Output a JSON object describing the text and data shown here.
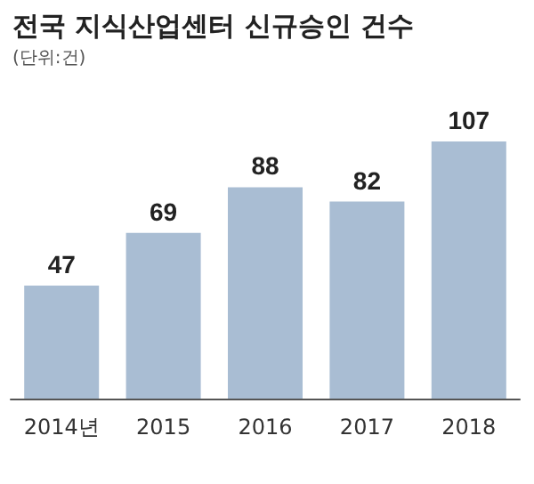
{
  "chart_data": {
    "type": "bar",
    "title": "전국 지식산업센터 신규승인 건수",
    "subtitle": "(단위:건)",
    "categories": [
      "2014년",
      "2015",
      "2016",
      "2017",
      "2018"
    ],
    "values": [
      47,
      69,
      88,
      82,
      107
    ],
    "color": "#a9bdd3",
    "data_labels": true
  }
}
